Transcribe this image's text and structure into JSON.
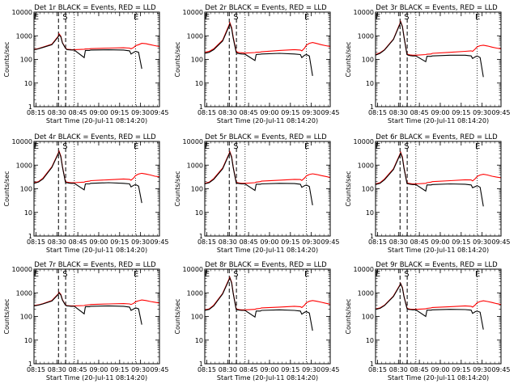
{
  "chart_data": {
    "type": "line",
    "layout": {
      "rows": 3,
      "cols": 3
    },
    "ylabel": "Counts/sec",
    "xlabel": "Start Time (20-Jul-11 08:14:20)",
    "yscale": "log",
    "ylim": [
      1,
      10000
    ],
    "y_ticks": [
      1,
      10,
      100,
      1000,
      10000
    ],
    "y_tick_labels_first_col": [
      "1",
      "10",
      "100",
      "1000",
      "10000"
    ],
    "y_tick_labels_other_cols": [
      "1",
      "10",
      "100",
      "1000",
      "10000"
    ],
    "xlim_minutes": [
      0,
      42
    ],
    "x_tick_labels": [
      "08:15",
      "08:30",
      "08:45",
      "09:00",
      "09:15",
      "09:30",
      "09:45"
    ],
    "x_tick_positions_minutes": [
      0.67,
      7.67,
      14.67,
      21.67,
      28.67,
      35.67,
      42.67
    ],
    "series_style": {
      "events": "#000000",
      "lld": "#ff0000"
    },
    "markers": [
      {
        "label": "E",
        "x_min": 0.8
      },
      {
        "label": "S",
        "x_min": 10.4
      },
      {
        "label": "E",
        "x_min": 34.2
      }
    ],
    "dashed_lines_x_min": [
      8.2,
      10.6
    ],
    "dotted_lines_x_min": [
      13.5,
      34.0
    ],
    "panels": [
      {
        "title": "Det 1r BLACK = Events, RED = LLD",
        "time_min": [
          0,
          1.5,
          3,
          6,
          8.1,
          8.4,
          9,
          9.5,
          10.5,
          11,
          11.6,
          12.4,
          13.5,
          16.8,
          17.2,
          18.6,
          19,
          25,
          30,
          32,
          32.5,
          33.4,
          34,
          35,
          36.1,
          37.5,
          39,
          40.5,
          42
        ],
        "events": [
          250,
          280,
          320,
          420,
          900,
          1100,
          900,
          500,
          300,
          260,
          255,
          252,
          250,
          120,
          240,
          240,
          250,
          255,
          250,
          230,
          170,
          200,
          220,
          200,
          40,
          0,
          0,
          0,
          0
        ],
        "lld": [
          260,
          290,
          330,
          440,
          950,
          1200,
          950,
          520,
          310,
          270,
          265,
          262,
          260,
          270,
          275,
          280,
          285,
          300,
          310,
          300,
          280,
          320,
          380,
          420,
          480,
          460,
          420,
          380,
          350
        ]
      },
      {
        "title": "Det 2r BLACK = Events, RED = LLD",
        "time_min": [
          0,
          1.5,
          3,
          6,
          8.1,
          8.4,
          9,
          9.5,
          10.5,
          11,
          11.6,
          12.4,
          13.5,
          16.8,
          17.2,
          18.6,
          19,
          25,
          30,
          32,
          32.5,
          33.4,
          34,
          35,
          36.1,
          37.5,
          39,
          40.5,
          42
        ],
        "events": [
          180,
          200,
          260,
          600,
          2500,
          3200,
          2000,
          800,
          200,
          180,
          175,
          170,
          165,
          90,
          160,
          165,
          170,
          180,
          170,
          160,
          120,
          150,
          160,
          140,
          20,
          0,
          0,
          0,
          0
        ],
        "lld": [
          200,
          220,
          280,
          650,
          2800,
          3600,
          2200,
          900,
          220,
          200,
          195,
          190,
          185,
          195,
          200,
          205,
          210,
          240,
          260,
          250,
          230,
          300,
          400,
          480,
          520,
          470,
          420,
          380,
          350
        ]
      },
      {
        "title": "Det 3r BLACK = Events, RED = LLD",
        "time_min": [
          0,
          1.5,
          3,
          6,
          8.1,
          8.4,
          9,
          9.5,
          10.5,
          11,
          11.6,
          12.4,
          13.5,
          16.8,
          17.2,
          18.6,
          19,
          25,
          30,
          32,
          32.5,
          33.4,
          34,
          35,
          36.1,
          37.5,
          39,
          40.5,
          42
        ],
        "events": [
          150,
          180,
          250,
          700,
          3000,
          3800,
          2400,
          900,
          160,
          150,
          145,
          140,
          140,
          80,
          135,
          135,
          140,
          150,
          150,
          140,
          110,
          130,
          140,
          120,
          18,
          0,
          0,
          0,
          0
        ],
        "lld": [
          160,
          190,
          260,
          720,
          3200,
          4000,
          2500,
          950,
          170,
          160,
          155,
          150,
          150,
          160,
          165,
          170,
          180,
          200,
          220,
          230,
          220,
          280,
          340,
          380,
          400,
          370,
          330,
          300,
          280
        ]
      },
      {
        "title": "Det 4r BLACK = Events, RED = LLD",
        "time_min": [
          0,
          1.5,
          3,
          6,
          8.1,
          8.4,
          9,
          9.5,
          10.5,
          11,
          11.6,
          12.4,
          13.5,
          16.8,
          17.2,
          18.6,
          19,
          25,
          30,
          32,
          32.5,
          33.4,
          34,
          35,
          36.1,
          37.5,
          39,
          40.5,
          42
        ],
        "events": [
          170,
          190,
          260,
          800,
          3000,
          3600,
          2200,
          850,
          190,
          180,
          175,
          170,
          170,
          90,
          160,
          160,
          170,
          180,
          170,
          160,
          120,
          140,
          150,
          130,
          25,
          0,
          0,
          0,
          0
        ],
        "lld": [
          180,
          200,
          280,
          850,
          3200,
          3900,
          2400,
          900,
          200,
          190,
          185,
          180,
          180,
          190,
          200,
          210,
          220,
          240,
          260,
          250,
          230,
          290,
          360,
          420,
          450,
          420,
          380,
          340,
          320
        ]
      },
      {
        "title": "Det 5r BLACK = Events, RED = LLD",
        "time_min": [
          0,
          1.5,
          3,
          6,
          8.1,
          8.4,
          9,
          9.5,
          10.5,
          11,
          11.6,
          12.4,
          13.5,
          16.8,
          17.2,
          18.6,
          19,
          25,
          30,
          32,
          32.5,
          33.4,
          34,
          35,
          36.1,
          37.5,
          39,
          40.5,
          42
        ],
        "events": [
          160,
          180,
          250,
          700,
          2800,
          3400,
          2100,
          800,
          180,
          170,
          165,
          160,
          160,
          85,
          155,
          155,
          160,
          170,
          165,
          155,
          115,
          135,
          145,
          125,
          20,
          0,
          0,
          0,
          0
        ],
        "lld": [
          170,
          190,
          270,
          750,
          3000,
          3700,
          2300,
          850,
          190,
          180,
          175,
          170,
          170,
          180,
          190,
          200,
          210,
          230,
          250,
          245,
          225,
          285,
          350,
          400,
          430,
          400,
          360,
          330,
          300
        ]
      },
      {
        "title": "Det 6r BLACK = Events, RED = LLD",
        "time_min": [
          0,
          1.5,
          3,
          6,
          8.1,
          8.4,
          9,
          9.5,
          10.5,
          11,
          11.6,
          12.4,
          13.5,
          16.8,
          17.2,
          18.6,
          19,
          25,
          30,
          32,
          32.5,
          33.4,
          34,
          35,
          36.1,
          37.5,
          39,
          40.5,
          42
        ],
        "events": [
          150,
          170,
          240,
          650,
          2600,
          3200,
          2000,
          750,
          170,
          160,
          155,
          150,
          150,
          80,
          145,
          145,
          150,
          160,
          155,
          145,
          110,
          125,
          135,
          115,
          18,
          0,
          0,
          0,
          0
        ],
        "lld": [
          160,
          180,
          260,
          700,
          2800,
          3500,
          2200,
          800,
          180,
          170,
          165,
          160,
          160,
          170,
          180,
          190,
          200,
          220,
          240,
          235,
          215,
          270,
          330,
          380,
          410,
          380,
          340,
          310,
          290
        ]
      },
      {
        "title": "Det 7r BLACK = Events, RED = LLD",
        "time_min": [
          0,
          1.5,
          3,
          6,
          8.1,
          8.4,
          9,
          9.5,
          10.5,
          11,
          11.6,
          12.4,
          13.5,
          16.8,
          17.2,
          18.6,
          19,
          25,
          30,
          32,
          32.5,
          33.4,
          34,
          35,
          36.1,
          37.5,
          39,
          40.5,
          42
        ],
        "events": [
          280,
          300,
          340,
          450,
          850,
          1000,
          800,
          500,
          300,
          280,
          275,
          270,
          270,
          130,
          260,
          260,
          270,
          280,
          270,
          250,
          180,
          210,
          230,
          210,
          45,
          0,
          0,
          0,
          0
        ],
        "lld": [
          290,
          310,
          350,
          470,
          900,
          1050,
          850,
          520,
          310,
          290,
          285,
          280,
          280,
          290,
          300,
          310,
          320,
          340,
          350,
          340,
          320,
          360,
          420,
          460,
          500,
          470,
          430,
          400,
          370
        ]
      },
      {
        "title": "Det 8r BLACK = Events, RED = LLD",
        "time_min": [
          0,
          1.5,
          3,
          6,
          8.1,
          8.4,
          9,
          9.5,
          10.5,
          11,
          11.6,
          12.4,
          13.5,
          16.8,
          17.2,
          18.6,
          19,
          25,
          30,
          32,
          32.5,
          33.4,
          34,
          35,
          36.1,
          37.5,
          39,
          40.5,
          42
        ],
        "events": [
          180,
          200,
          280,
          900,
          3500,
          4200,
          2600,
          950,
          200,
          190,
          185,
          180,
          180,
          95,
          170,
          170,
          180,
          190,
          180,
          170,
          125,
          150,
          160,
          140,
          25,
          0,
          0,
          0,
          0
        ],
        "lld": [
          190,
          210,
          300,
          950,
          3800,
          4500,
          2800,
          1000,
          210,
          200,
          195,
          190,
          190,
          200,
          210,
          220,
          230,
          250,
          270,
          260,
          240,
          300,
          380,
          440,
          470,
          440,
          400,
          360,
          330
        ]
      },
      {
        "title": "Det 9r BLACK = Events, RED = LLD",
        "time_min": [
          0,
          1.5,
          3,
          6,
          8.1,
          8.4,
          9,
          9.5,
          10.5,
          11,
          11.6,
          12.4,
          13.5,
          16.8,
          17.2,
          18.6,
          19,
          25,
          30,
          32,
          32.5,
          33.4,
          34,
          35,
          36.1,
          37.5,
          39,
          40.5,
          42
        ],
        "events": [
          200,
          220,
          290,
          700,
          2000,
          2400,
          1600,
          700,
          220,
          200,
          195,
          190,
          190,
          100,
          185,
          185,
          190,
          200,
          195,
          185,
          135,
          160,
          170,
          150,
          28,
          0,
          0,
          0,
          0
        ],
        "lld": [
          210,
          230,
          300,
          730,
          2100,
          2500,
          1700,
          730,
          230,
          210,
          205,
          200,
          200,
          210,
          220,
          230,
          240,
          260,
          280,
          270,
          250,
          310,
          380,
          430,
          460,
          430,
          390,
          350,
          320
        ]
      }
    ]
  }
}
